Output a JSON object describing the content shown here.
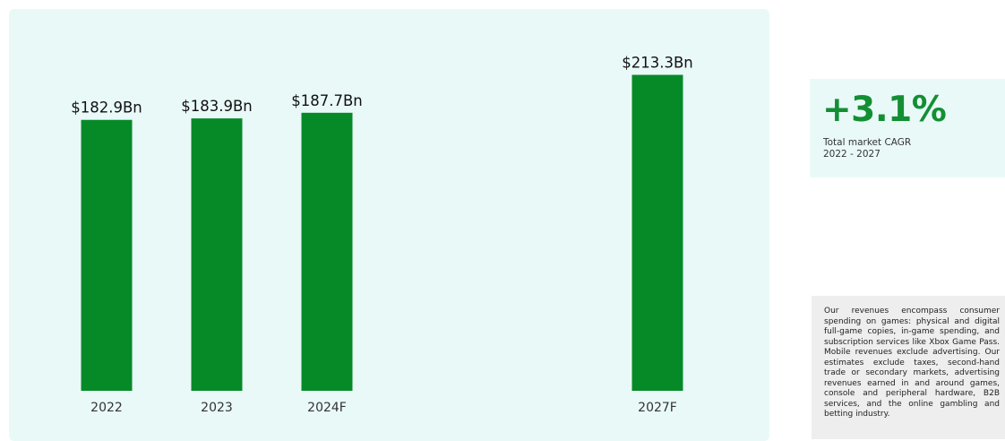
{
  "chart_data": {
    "type": "bar",
    "categories": [
      "2022",
      "2023",
      "2024F",
      "2027F"
    ],
    "values": [
      182.9,
      183.9,
      187.7,
      213.3
    ],
    "value_labels": [
      "$182.9Bn",
      "$183.9Bn",
      "$187.7Bn",
      "$213.3Bn"
    ],
    "title": "",
    "xlabel": "",
    "ylabel": "",
    "ylim": [
      0,
      220
    ],
    "grid": false,
    "bar_color": "#068a28",
    "background_color": "#e9f9f8"
  },
  "cagr": {
    "value": "+3.1%",
    "line1": "Total market CAGR",
    "line2": "2022 - 2027",
    "color": "#138f33"
  },
  "note": {
    "text": "Our revenues encompass consumer spending on games: physical and digital full-game copies, in-game spending, and subscription services like Xbox Game Pass. Mobile revenues exclude advertising. Our estimates exclude taxes, second-hand trade or secondary markets, advertising revenues earned in and around games, console and peripheral hardware, B2B services, and the online gambling and betting industry."
  }
}
